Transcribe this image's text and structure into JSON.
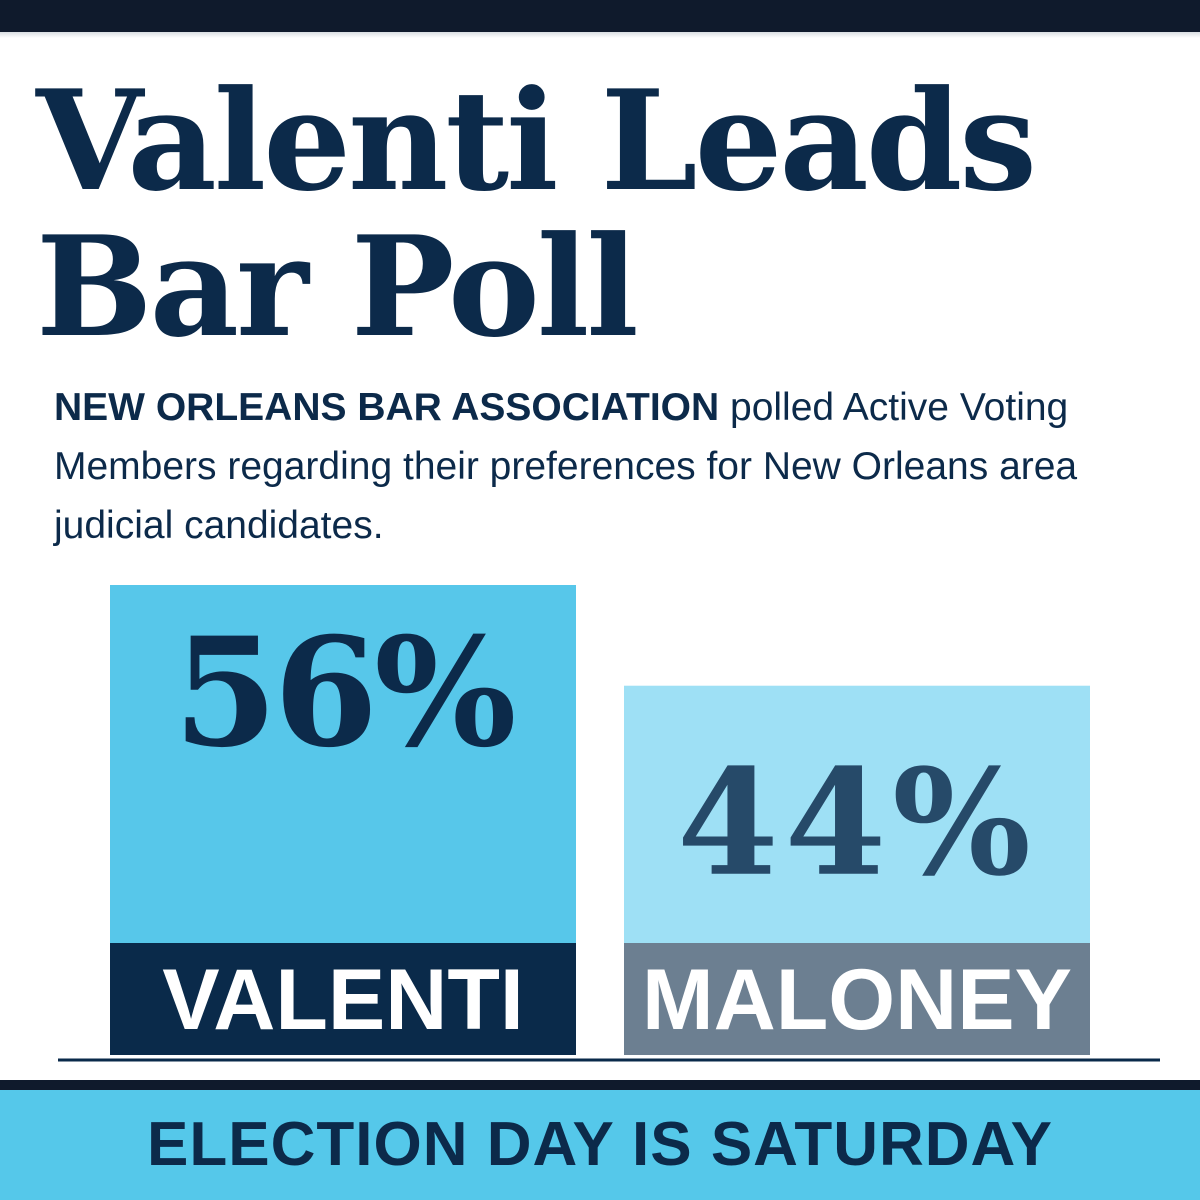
{
  "headline": {
    "line1": "Valenti Leads",
    "line2": "Bar Poll"
  },
  "intro": {
    "org": "NEW ORLEANS BAR ASSOCIATION",
    "text": " polled Active Voting Members regarding their preferences for New Orleans area judicial candidates."
  },
  "chart_data": {
    "type": "bar",
    "categories": [
      "VALENTI",
      "MALONEY"
    ],
    "values": [
      56,
      44
    ],
    "value_labels": [
      "56%",
      "44%"
    ],
    "colors": {
      "bars": [
        "#57c7ea",
        "#9ee0f5"
      ],
      "label_bg": [
        "#0a2a4a",
        "#6c7f91"
      ],
      "value_text": [
        "#0c2a4a",
        "#264a69"
      ],
      "label_text": [
        "#ffffff",
        "#ffffff"
      ]
    },
    "ylim": [
      0,
      56
    ],
    "grid": false,
    "legend": "none"
  },
  "footer": {
    "text": "ELECTION DAY IS SATURDAY"
  }
}
